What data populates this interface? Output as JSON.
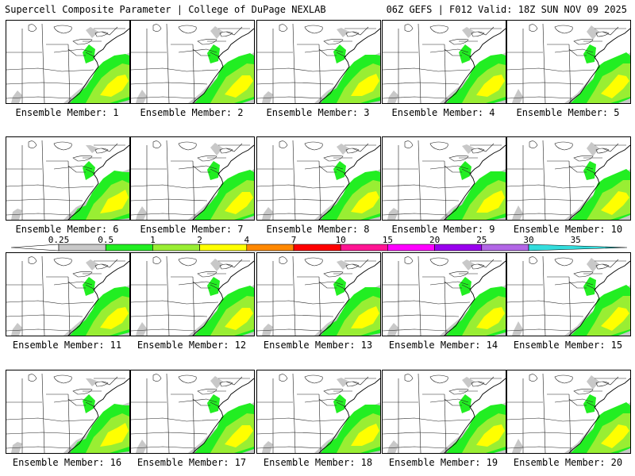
{
  "header": {
    "left": "Supercell Composite Parameter | College of DuPage NEXLAB",
    "right": "06Z GEFS | F012 Valid: 18Z SUN NOV 09 2025"
  },
  "panels": [
    {
      "label": "Ensemble Member: 1"
    },
    {
      "label": "Ensemble Member: 2"
    },
    {
      "label": "Ensemble Member: 3"
    },
    {
      "label": "Ensemble Member: 4"
    },
    {
      "label": "Ensemble Member: 5"
    },
    {
      "label": "Ensemble Member: 6"
    },
    {
      "label": "Ensemble Member: 7"
    },
    {
      "label": "Ensemble Member: 8"
    },
    {
      "label": "Ensemble Member: 9"
    },
    {
      "label": "Ensemble Member: 10"
    },
    {
      "label": "Ensemble Member: 11"
    },
    {
      "label": "Ensemble Member: 12"
    },
    {
      "label": "Ensemble Member: 13"
    },
    {
      "label": "Ensemble Member: 14"
    },
    {
      "label": "Ensemble Member: 15"
    },
    {
      "label": "Ensemble Member: 16"
    },
    {
      "label": "Ensemble Member: 17"
    },
    {
      "label": "Ensemble Member: 18"
    },
    {
      "label": "Ensemble Member: 19"
    },
    {
      "label": "Ensemble Member: 20"
    }
  ],
  "legend": {
    "ticks": [
      "0.25",
      "0.5",
      "1",
      "2",
      "4",
      "7",
      "10",
      "15",
      "20",
      "25",
      "30",
      "35"
    ],
    "colors": [
      "#ffffff",
      "#c8c8c8",
      "#22ee22",
      "#99ee33",
      "#ffff00",
      "#ff8800",
      "#ff0000",
      "#ff1493",
      "#ff00ff",
      "#9900ee",
      "#b266e6",
      "#33dddd"
    ]
  }
}
